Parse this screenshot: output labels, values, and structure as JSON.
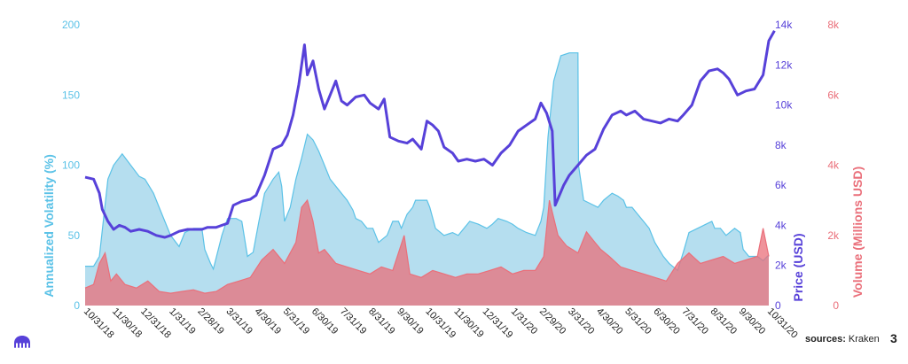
{
  "chart_data": {
    "type": "area",
    "x_ticks": [
      "10/31/18",
      "11/30/18",
      "12/31/18",
      "1/31/19",
      "2/28/19",
      "3/31/19",
      "4/30/19",
      "5/31/19",
      "6/30/19",
      "7/31/19",
      "8/31/19",
      "9/30/19",
      "10/31/19",
      "11/30/19",
      "12/31/19",
      "1/31/20",
      "2/29/20",
      "3/31/20",
      "4/30/20",
      "5/31/20",
      "6/30/20",
      "7/31/20",
      "8/31/20",
      "9/30/20",
      "10/31/20"
    ],
    "y_left": {
      "label": "Annualized Volatility (%)",
      "range": [
        0,
        200
      ],
      "ticks": [
        "0",
        "50",
        "100",
        "150",
        "200"
      ]
    },
    "y_price": {
      "label": "Price (USD)",
      "range": [
        0,
        14000
      ],
      "ticks": [
        "0",
        "2k",
        "4k",
        "6k",
        "8k",
        "10k",
        "12k",
        "14k"
      ]
    },
    "y_volume": {
      "label": "Volume (Millions USD)",
      "range": [
        0,
        8000
      ],
      "ticks": [
        "0",
        "2k",
        "4k",
        "6k",
        "8k"
      ]
    },
    "series": [
      {
        "name": "Annualized Volatility (%)",
        "type": "area",
        "color": "#a8d8ec",
        "stroke": "#5bc2e7",
        "points": [
          [
            0,
            28
          ],
          [
            0.3,
            28
          ],
          [
            0.5,
            35
          ],
          [
            0.8,
            90
          ],
          [
            1.0,
            100
          ],
          [
            1.3,
            108
          ],
          [
            1.6,
            100
          ],
          [
            1.9,
            92
          ],
          [
            2.1,
            90
          ],
          [
            2.4,
            80
          ],
          [
            2.6,
            70
          ],
          [
            2.8,
            60
          ],
          [
            3.0,
            50
          ],
          [
            3.3,
            42
          ],
          [
            3.5,
            52
          ],
          [
            3.8,
            55
          ],
          [
            4.0,
            55
          ],
          [
            4.1,
            55
          ],
          [
            4.2,
            40
          ],
          [
            4.4,
            30
          ],
          [
            4.5,
            26
          ],
          [
            4.8,
            50
          ],
          [
            5.0,
            62
          ],
          [
            5.3,
            62
          ],
          [
            5.5,
            60
          ],
          [
            5.7,
            35
          ],
          [
            5.9,
            38
          ],
          [
            6.1,
            60
          ],
          [
            6.3,
            80
          ],
          [
            6.6,
            90
          ],
          [
            6.8,
            95
          ],
          [
            6.9,
            85
          ],
          [
            7.0,
            60
          ],
          [
            7.2,
            70
          ],
          [
            7.4,
            90
          ],
          [
            7.6,
            105
          ],
          [
            7.8,
            122
          ],
          [
            8.0,
            118
          ],
          [
            8.2,
            110
          ],
          [
            8.4,
            100
          ],
          [
            8.6,
            90
          ],
          [
            8.8,
            85
          ],
          [
            9.0,
            80
          ],
          [
            9.2,
            75
          ],
          [
            9.4,
            68
          ],
          [
            9.5,
            62
          ],
          [
            9.7,
            60
          ],
          [
            9.9,
            55
          ],
          [
            10.1,
            55
          ],
          [
            10.3,
            45
          ],
          [
            10.6,
            50
          ],
          [
            10.8,
            60
          ],
          [
            11.0,
            60
          ],
          [
            11.1,
            55
          ],
          [
            11.3,
            65
          ],
          [
            11.5,
            70
          ],
          [
            11.6,
            75
          ],
          [
            12.0,
            75
          ],
          [
            12.1,
            70
          ],
          [
            12.3,
            55
          ],
          [
            12.6,
            50
          ],
          [
            12.9,
            52
          ],
          [
            13.1,
            50
          ],
          [
            13.3,
            55
          ],
          [
            13.5,
            60
          ],
          [
            13.8,
            58
          ],
          [
            14.1,
            55
          ],
          [
            14.3,
            58
          ],
          [
            14.5,
            62
          ],
          [
            14.8,
            60
          ],
          [
            15.0,
            58
          ],
          [
            15.2,
            55
          ],
          [
            15.5,
            52
          ],
          [
            15.8,
            50
          ],
          [
            16.0,
            60
          ],
          [
            16.1,
            70
          ],
          [
            16.25,
            120
          ],
          [
            16.45,
            160
          ],
          [
            16.7,
            178
          ],
          [
            17.0,
            180
          ],
          [
            17.3,
            180
          ],
          [
            17.32,
            100
          ],
          [
            17.5,
            75
          ],
          [
            17.8,
            72
          ],
          [
            18.0,
            70
          ],
          [
            18.2,
            75
          ],
          [
            18.5,
            80
          ],
          [
            18.7,
            78
          ],
          [
            18.9,
            75
          ],
          [
            19.0,
            70
          ],
          [
            19.2,
            70
          ],
          [
            19.4,
            65
          ],
          [
            19.6,
            60
          ],
          [
            19.8,
            55
          ],
          [
            20.0,
            45
          ],
          [
            20.3,
            35
          ],
          [
            20.5,
            30
          ],
          [
            20.8,
            25
          ],
          [
            21.0,
            38
          ],
          [
            21.2,
            52
          ],
          [
            21.5,
            55
          ],
          [
            21.8,
            58
          ],
          [
            22.0,
            60
          ],
          [
            22.1,
            55
          ],
          [
            22.3,
            55
          ],
          [
            22.5,
            50
          ],
          [
            22.8,
            55
          ],
          [
            23.0,
            52
          ],
          [
            23.1,
            40
          ],
          [
            23.3,
            35
          ],
          [
            23.6,
            35
          ],
          [
            23.8,
            32
          ],
          [
            24.0,
            36
          ]
        ]
      },
      {
        "name": "Price (USD)",
        "type": "line",
        "axis": "y_price",
        "color": "#5741d9",
        "points": [
          [
            0,
            6400
          ],
          [
            0.3,
            6300
          ],
          [
            0.5,
            5600
          ],
          [
            0.6,
            4800
          ],
          [
            0.8,
            4200
          ],
          [
            1.0,
            3800
          ],
          [
            1.2,
            4000
          ],
          [
            1.4,
            3900
          ],
          [
            1.6,
            3700
          ],
          [
            1.9,
            3800
          ],
          [
            2.2,
            3700
          ],
          [
            2.5,
            3500
          ],
          [
            2.8,
            3400
          ],
          [
            3.0,
            3500
          ],
          [
            3.3,
            3700
          ],
          [
            3.6,
            3800
          ],
          [
            3.9,
            3800
          ],
          [
            4.1,
            3800
          ],
          [
            4.3,
            3900
          ],
          [
            4.6,
            3900
          ],
          [
            4.8,
            4000
          ],
          [
            5.0,
            4100
          ],
          [
            5.2,
            5000
          ],
          [
            5.5,
            5200
          ],
          [
            5.8,
            5300
          ],
          [
            6.0,
            5500
          ],
          [
            6.3,
            6500
          ],
          [
            6.6,
            7800
          ],
          [
            6.9,
            8000
          ],
          [
            7.1,
            8500
          ],
          [
            7.3,
            9500
          ],
          [
            7.5,
            11000
          ],
          [
            7.7,
            13000
          ],
          [
            7.8,
            11500
          ],
          [
            8.0,
            12200
          ],
          [
            8.2,
            10800
          ],
          [
            8.4,
            9800
          ],
          [
            8.6,
            10500
          ],
          [
            8.8,
            11200
          ],
          [
            9.0,
            10200
          ],
          [
            9.2,
            10000
          ],
          [
            9.5,
            10400
          ],
          [
            9.8,
            10500
          ],
          [
            10.0,
            10100
          ],
          [
            10.3,
            9800
          ],
          [
            10.5,
            10300
          ],
          [
            10.7,
            8400
          ],
          [
            11.0,
            8200
          ],
          [
            11.3,
            8100
          ],
          [
            11.5,
            8300
          ],
          [
            11.8,
            7800
          ],
          [
            12.0,
            9200
          ],
          [
            12.2,
            9000
          ],
          [
            12.4,
            8700
          ],
          [
            12.6,
            7900
          ],
          [
            12.9,
            7600
          ],
          [
            13.1,
            7200
          ],
          [
            13.4,
            7300
          ],
          [
            13.7,
            7200
          ],
          [
            14.0,
            7300
          ],
          [
            14.3,
            7000
          ],
          [
            14.6,
            7600
          ],
          [
            14.9,
            8000
          ],
          [
            15.2,
            8700
          ],
          [
            15.5,
            9000
          ],
          [
            15.8,
            9300
          ],
          [
            16.0,
            10100
          ],
          [
            16.2,
            9600
          ],
          [
            16.4,
            8700
          ],
          [
            16.5,
            5000
          ],
          [
            16.8,
            6000
          ],
          [
            17.0,
            6500
          ],
          [
            17.3,
            7000
          ],
          [
            17.6,
            7500
          ],
          [
            17.9,
            7800
          ],
          [
            18.2,
            8800
          ],
          [
            18.5,
            9500
          ],
          [
            18.8,
            9700
          ],
          [
            19.0,
            9500
          ],
          [
            19.3,
            9700
          ],
          [
            19.6,
            9300
          ],
          [
            19.9,
            9200
          ],
          [
            20.2,
            9100
          ],
          [
            20.5,
            9300
          ],
          [
            20.8,
            9200
          ],
          [
            21.0,
            9500
          ],
          [
            21.3,
            10000
          ],
          [
            21.6,
            11200
          ],
          [
            21.9,
            11700
          ],
          [
            22.2,
            11800
          ],
          [
            22.4,
            11600
          ],
          [
            22.6,
            11300
          ],
          [
            22.9,
            10500
          ],
          [
            23.2,
            10700
          ],
          [
            23.5,
            10800
          ],
          [
            23.8,
            11500
          ],
          [
            24.0,
            13200
          ],
          [
            24.2,
            13700
          ]
        ]
      },
      {
        "name": "Volume (Millions USD)",
        "type": "area",
        "axis": "y_volume",
        "color": "#ea6f7a",
        "points": [
          [
            0,
            500
          ],
          [
            0.3,
            600
          ],
          [
            0.5,
            1200
          ],
          [
            0.7,
            1500
          ],
          [
            0.9,
            700
          ],
          [
            1.1,
            900
          ],
          [
            1.4,
            600
          ],
          [
            1.8,
            500
          ],
          [
            2.2,
            700
          ],
          [
            2.6,
            400
          ],
          [
            3.0,
            350
          ],
          [
            3.4,
            400
          ],
          [
            3.8,
            450
          ],
          [
            4.2,
            350
          ],
          [
            4.6,
            400
          ],
          [
            5.0,
            600
          ],
          [
            5.4,
            700
          ],
          [
            5.8,
            800
          ],
          [
            6.2,
            1300
          ],
          [
            6.6,
            1600
          ],
          [
            7.0,
            1200
          ],
          [
            7.4,
            1800
          ],
          [
            7.6,
            2800
          ],
          [
            7.8,
            3000
          ],
          [
            8.0,
            2400
          ],
          [
            8.2,
            1500
          ],
          [
            8.4,
            1600
          ],
          [
            8.8,
            1200
          ],
          [
            9.2,
            1100
          ],
          [
            9.6,
            1000
          ],
          [
            10.0,
            900
          ],
          [
            10.4,
            1100
          ],
          [
            10.8,
            1000
          ],
          [
            11.2,
            2000
          ],
          [
            11.4,
            900
          ],
          [
            11.8,
            800
          ],
          [
            12.2,
            1000
          ],
          [
            12.6,
            900
          ],
          [
            13.0,
            800
          ],
          [
            13.4,
            900
          ],
          [
            13.8,
            900
          ],
          [
            14.2,
            1000
          ],
          [
            14.6,
            1100
          ],
          [
            15.0,
            900
          ],
          [
            15.4,
            1000
          ],
          [
            15.8,
            1000
          ],
          [
            16.1,
            1400
          ],
          [
            16.3,
            3000
          ],
          [
            16.6,
            2000
          ],
          [
            16.9,
            1700
          ],
          [
            17.3,
            1500
          ],
          [
            17.6,
            2100
          ],
          [
            17.9,
            1800
          ],
          [
            18.1,
            1600
          ],
          [
            18.4,
            1400
          ],
          [
            18.8,
            1100
          ],
          [
            19.2,
            1000
          ],
          [
            19.6,
            900
          ],
          [
            20.0,
            800
          ],
          [
            20.4,
            700
          ],
          [
            20.8,
            1200
          ],
          [
            21.2,
            1500
          ],
          [
            21.6,
            1200
          ],
          [
            22.0,
            1300
          ],
          [
            22.4,
            1400
          ],
          [
            22.8,
            1200
          ],
          [
            23.2,
            1300
          ],
          [
            23.6,
            1400
          ],
          [
            23.8,
            2200
          ],
          [
            24.0,
            1400
          ]
        ]
      }
    ],
    "grid": false,
    "legend": "none"
  },
  "footer": {
    "source_label": "sources:",
    "source_value": "Kraken",
    "page_number": "3"
  }
}
